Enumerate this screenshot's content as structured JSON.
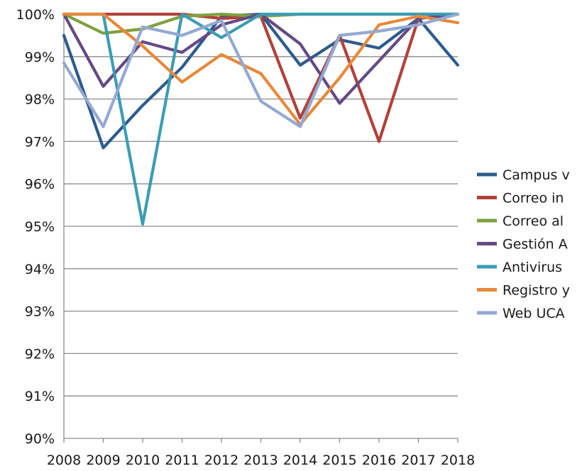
{
  "chart_data": {
    "type": "line",
    "title": "",
    "xlabel": "",
    "ylabel": "",
    "categories": [
      "2008",
      "2009",
      "2010",
      "2011",
      "2012",
      "2013",
      "2014",
      "2015",
      "2016",
      "2017",
      "2018"
    ],
    "ylim": [
      90,
      100
    ],
    "y_ticks": [
      90,
      91,
      92,
      93,
      94,
      95,
      96,
      97,
      98,
      99,
      100
    ],
    "y_tick_labels": [
      "90%",
      "91%",
      "92%",
      "93%",
      "94%",
      "95%",
      "96%",
      "97%",
      "98%",
      "99%",
      "100%"
    ],
    "grid": true,
    "legend_position": "right",
    "series": [
      {
        "name": "Campus v",
        "color": "#2e5b8e",
        "values": [
          99.5,
          96.85,
          97.85,
          98.75,
          99.95,
          100,
          98.8,
          99.4,
          99.2,
          99.9,
          98.8
        ]
      },
      {
        "name": "Correo in",
        "color": "#b2413b",
        "values": [
          100,
          100,
          100,
          100,
          99.9,
          99.95,
          97.55,
          99.5,
          97,
          99.9,
          100
        ]
      },
      {
        "name": "Correo al",
        "color": "#7ea13f",
        "values": [
          100,
          99.55,
          99.65,
          99.95,
          100,
          99.95,
          100,
          100,
          100,
          100,
          100
        ]
      },
      {
        "name": "Gestión A",
        "color": "#654a85",
        "values": [
          100,
          98.3,
          99.35,
          99.1,
          99.75,
          100,
          99.3,
          97.9,
          98.9,
          99.9,
          100
        ]
      },
      {
        "name": "Antivirus",
        "color": "#3b9db4",
        "values": [
          100,
          100,
          95.05,
          100,
          99.45,
          100,
          100,
          100,
          100,
          100,
          100
        ]
      },
      {
        "name": "Registro y",
        "color": "#e7893a",
        "values": [
          100,
          100,
          99.25,
          98.4,
          99.05,
          98.6,
          97.4,
          98.5,
          99.75,
          99.95,
          99.8
        ]
      },
      {
        "name": "Web UCA",
        "color": "#93a9d2",
        "values": [
          98.85,
          97.35,
          99.7,
          99.5,
          99.85,
          97.95,
          97.35,
          99.5,
          99.6,
          99.75,
          100
        ]
      }
    ]
  }
}
